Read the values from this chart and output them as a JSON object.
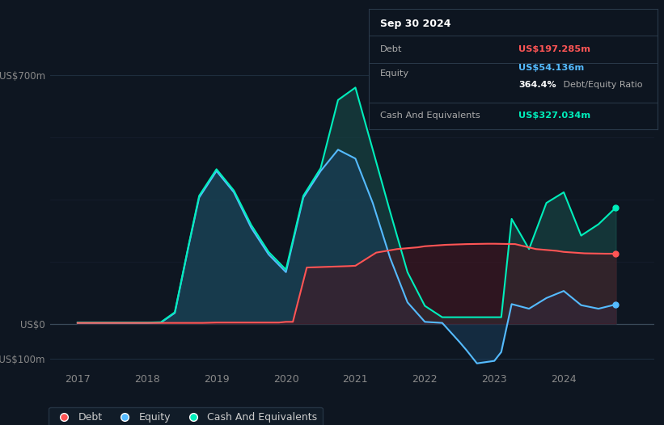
{
  "bg_color": "#0e1621",
  "plot_bg_color": "#0e1621",
  "title_box": {
    "date": "Sep 30 2024",
    "debt_label": "Debt",
    "debt_value": "US$197.285m",
    "equity_label": "Equity",
    "equity_value": "US$54.136m",
    "ratio": "364.4% Debt/Equity Ratio",
    "cash_label": "Cash And Equivalents",
    "cash_value": "US$327.034m",
    "debt_color": "#ff5555",
    "equity_color": "#55bbff",
    "cash_color": "#00eebb",
    "text_color": "#aaaaaa",
    "title_color": "#ffffff"
  },
  "ylim": [
    -130,
    780
  ],
  "yticks": [
    -100,
    0,
    700
  ],
  "ytick_labels": [
    "-US$100m",
    "US$0",
    "US$700m"
  ],
  "xlim": [
    2016.6,
    2025.3
  ],
  "xlabel_years": [
    2017,
    2018,
    2019,
    2020,
    2021,
    2022,
    2023,
    2024
  ],
  "legend": {
    "debt_label": "Debt",
    "equity_label": "Equity",
    "cash_label": "Cash And Equivalents",
    "debt_color": "#ff5555",
    "equity_color": "#55bbff",
    "cash_color": "#00eebb"
  },
  "debt_x": [
    2017.0,
    2017.3,
    2017.6,
    2017.9,
    2018.2,
    2018.5,
    2018.8,
    2019.0,
    2019.3,
    2019.6,
    2019.9,
    2020.0,
    2020.1,
    2020.3,
    2020.6,
    2020.9,
    2021.0,
    2021.3,
    2021.6,
    2021.9,
    2022.0,
    2022.3,
    2022.6,
    2022.9,
    2023.0,
    2023.3,
    2023.6,
    2023.9,
    2024.0,
    2024.3,
    2024.6,
    2024.75
  ],
  "debt_y": [
    2,
    2,
    2,
    2,
    2,
    2,
    2,
    3,
    3,
    3,
    3,
    5,
    5,
    158,
    160,
    162,
    163,
    200,
    210,
    215,
    218,
    222,
    224,
    225,
    225,
    224,
    210,
    205,
    202,
    198,
    197,
    197
  ],
  "equity_x": [
    2017.0,
    2017.3,
    2017.6,
    2017.9,
    2018.0,
    2018.2,
    2018.4,
    2018.6,
    2018.75,
    2019.0,
    2019.25,
    2019.5,
    2019.75,
    2020.0,
    2020.25,
    2020.5,
    2020.75,
    2021.0,
    2021.25,
    2021.5,
    2021.75,
    2022.0,
    2022.25,
    2022.5,
    2022.6,
    2022.75,
    2023.0,
    2023.1,
    2023.25,
    2023.5,
    2023.75,
    2024.0,
    2024.25,
    2024.5,
    2024.75
  ],
  "equity_y": [
    2,
    2,
    2,
    2,
    2,
    3,
    30,
    220,
    355,
    430,
    370,
    270,
    195,
    145,
    355,
    430,
    490,
    465,
    340,
    185,
    60,
    5,
    2,
    -52,
    -75,
    -112,
    -105,
    -80,
    55,
    42,
    72,
    92,
    52,
    42,
    54
  ],
  "cash_x": [
    2017.0,
    2017.3,
    2017.6,
    2017.9,
    2018.0,
    2018.2,
    2018.4,
    2018.6,
    2018.75,
    2019.0,
    2019.25,
    2019.5,
    2019.75,
    2020.0,
    2020.25,
    2020.5,
    2020.75,
    2021.0,
    2021.25,
    2021.5,
    2021.75,
    2022.0,
    2022.25,
    2022.5,
    2022.75,
    2023.0,
    2023.1,
    2023.25,
    2023.5,
    2023.75,
    2024.0,
    2024.25,
    2024.5,
    2024.75
  ],
  "cash_y": [
    3,
    3,
    3,
    3,
    3,
    4,
    32,
    222,
    360,
    435,
    375,
    278,
    202,
    152,
    360,
    438,
    630,
    665,
    490,
    315,
    145,
    50,
    18,
    18,
    18,
    18,
    18,
    295,
    210,
    340,
    370,
    248,
    280,
    327
  ]
}
